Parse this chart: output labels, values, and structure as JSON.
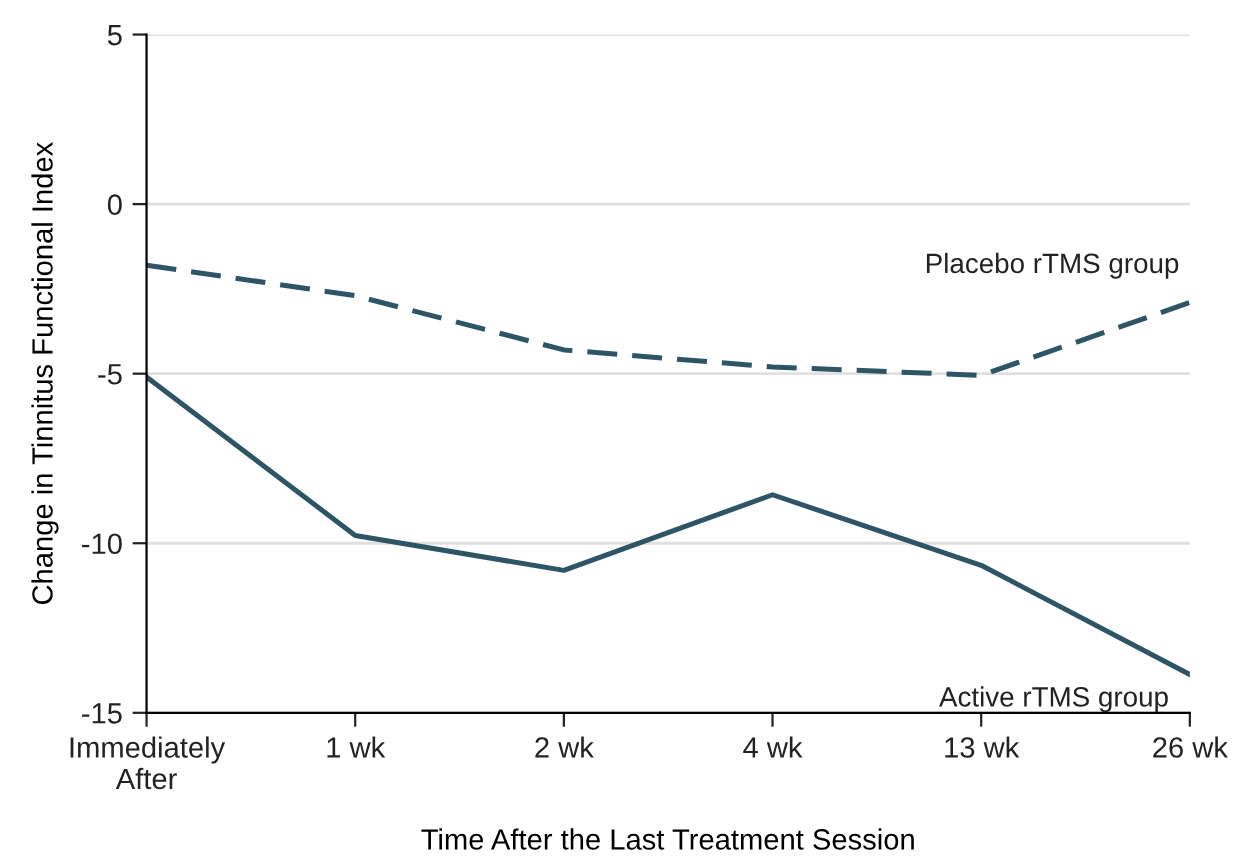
{
  "chart_data": {
    "type": "line",
    "xlabel": "Time After the Last Treatment Session",
    "ylabel": "Change in Tinnitus Functional Index",
    "categories": [
      "Immediately\nAfter",
      "1 wk",
      "2 wk",
      "4 wk",
      "13 wk",
      "26 wk"
    ],
    "series": [
      {
        "name": "Placebo rTMS group",
        "color": "#2e5566",
        "line_style": "dashed",
        "values": [
          -1.8,
          -2.7,
          -4.3,
          -4.8,
          -5.05,
          -2.9
        ]
      },
      {
        "name": "Active rTMS group",
        "color": "#2e5566",
        "line_style": "solid",
        "values": [
          -5.1,
          -9.77,
          -10.8,
          -8.57,
          -10.65,
          -13.87
        ]
      }
    ],
    "ylim": [
      -15,
      5
    ],
    "yticks": [
      -15,
      -10,
      -5,
      0,
      5
    ],
    "grid": "y",
    "marker": "none",
    "legend": false
  }
}
